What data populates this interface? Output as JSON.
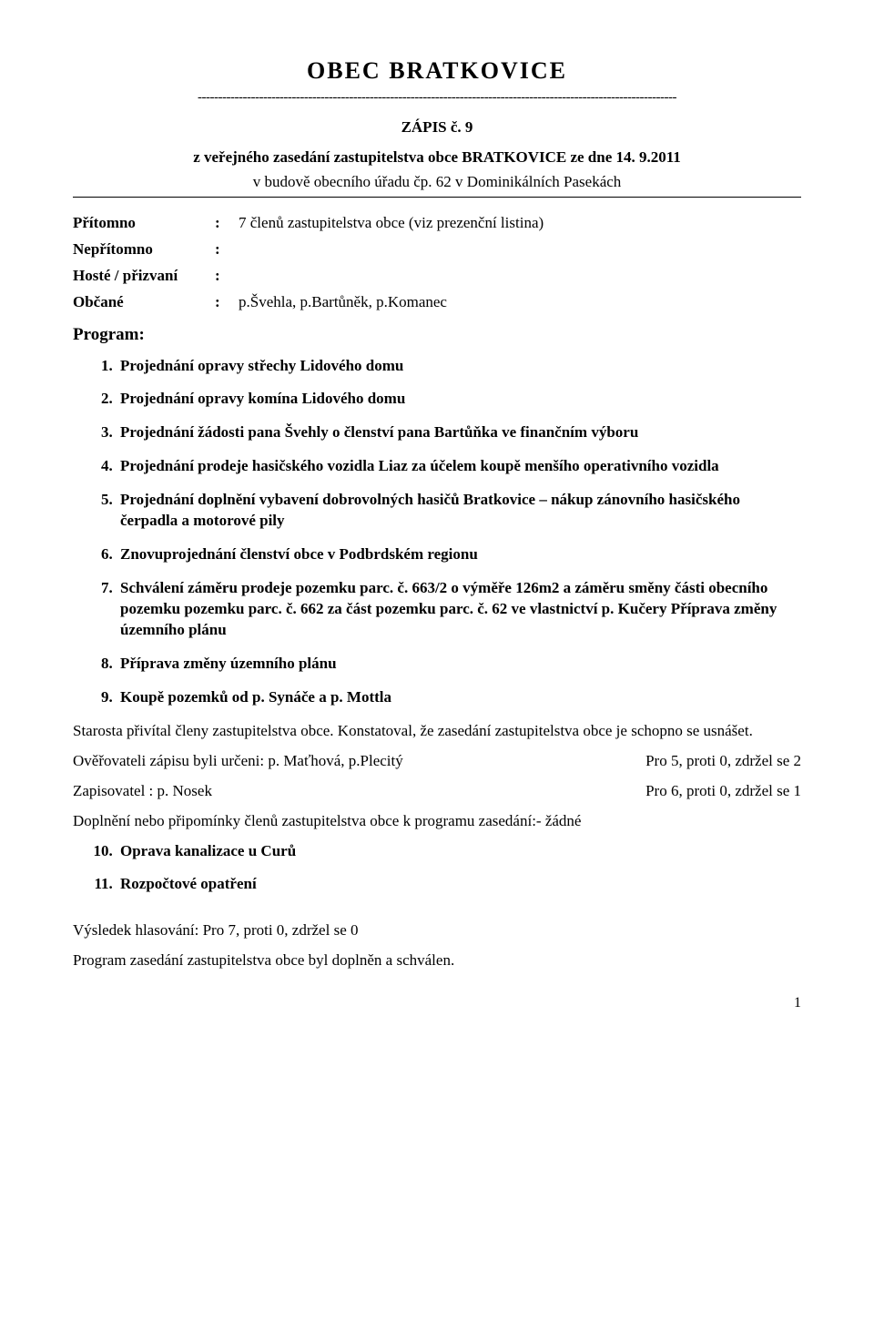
{
  "doc": {
    "title": "OBEC   BRATKOVICE",
    "dash_line": "---------------------------------------------------------------------------------------------------------------------",
    "zapis": "ZÁPIS č. 9",
    "meeting_line": "z  veřejného zasedání zastupitelstva obce BRATKOVICE ze dne 14. 9.2011",
    "location_line": "v budově obecního úřadu čp. 62 v Dominikálních Pasekách"
  },
  "attendance": {
    "rows": [
      {
        "label": "Přítomno",
        "value": "7 členů zastupitelstva obce (viz prezenční listina)"
      },
      {
        "label": "Nepřítomno",
        "value": ""
      },
      {
        "label": "Hosté / přizvaní",
        "value": ""
      },
      {
        "label": "Občané",
        "value": "p.Švehla, p.Bartůněk, p.Komanec"
      }
    ]
  },
  "program_label": "Program:",
  "program": [
    "Projednání opravy střechy Lidového domu",
    "Projednání opravy komína Lidového domu",
    "Projednání žádosti pana Švehly o členství pana Bartůňka ve finančním výboru",
    "Projednání prodeje hasičského vozidla Liaz za účelem koupě menšího operativního vozidla",
    "Projednání doplnění vybavení dobrovolných hasičů Bratkovice – nákup zánovního hasičského čerpadla a motorové pily",
    "Znovuprojednání členství obce v Podbrdském regionu",
    "Schválení záměru prodeje pozemku parc. č. 663/2 o výměře 126m2 a záměru směny části obecního pozemku pozemku parc. č. 662 za část pozemku parc. č. 62 ve vlastnictví p. Kučery Příprava změny územního plánu",
    "Příprava změny územního plánu",
    "Koupě pozemků od p. Synáče a p. Mottla"
  ],
  "body": {
    "intro": "Starosta přivítal členy zastupitelstva obce. Konstatoval, že zasedání zastupitelstva obce je schopno se usnášet.",
    "verifiers_left": "Ověřovateli zápisu byli určeni: p. Maťhová, p.Plecitý",
    "verifiers_right": "Pro 5, proti 0, zdržel se 2",
    "recorder_left": "Zapisovatel : p. Nosek",
    "recorder_right": "Pro 6, proti 0, zdržel se 1",
    "amend": "Doplnění nebo připomínky členů zastupitelstva obce k programu zasedání:- žádné"
  },
  "additional": [
    "Oprava kanalizace u Curů",
    "Rozpočtové opatření"
  ],
  "footer": {
    "vote": "Výsledek hlasování:  Pro 7, proti 0, zdržel se 0",
    "approved": "Program zasedání zastupitelstva obce byl doplněn a schválen.",
    "page_num": "1"
  }
}
